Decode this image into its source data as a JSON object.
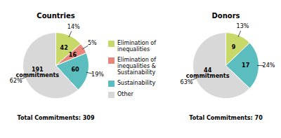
{
  "chart_data": [
    {
      "type": "pie",
      "title": "Countries",
      "categories": [
        "Elimination of\ninequalities",
        "Elimination of\ninequalities &\nSustainability",
        "Sustainability",
        "Other"
      ],
      "values": [
        42,
        16,
        60,
        191
      ],
      "value_labels": [
        "42",
        "16",
        "60",
        "191\ncommitments"
      ],
      "percentages": [
        14,
        5,
        19,
        62
      ],
      "percentage_labels": [
        "14%",
        "5%",
        "19%",
        "62%"
      ],
      "colors": [
        "#c8d96a",
        "#e8857a",
        "#5bbdbd",
        "#d8d8d8"
      ],
      "annotation": "Total Commitments: 309",
      "data_labels": true,
      "legend": "center"
    },
    {
      "type": "pie",
      "title": "Donors",
      "categories": [
        "Elimination of\ninequalities",
        "Sustainability",
        "Other"
      ],
      "values": [
        9,
        17,
        44
      ],
      "value_labels": [
        "9",
        "17",
        "44\ncommitments"
      ],
      "percentages": [
        13,
        24,
        63
      ],
      "percentage_labels": [
        "13%",
        "24%",
        "63%"
      ],
      "colors": [
        "#c8d96a",
        "#5bbdbd",
        "#d8d8d8"
      ],
      "annotation": "Total Commitments: 70",
      "data_labels": true,
      "legend": "center"
    }
  ]
}
